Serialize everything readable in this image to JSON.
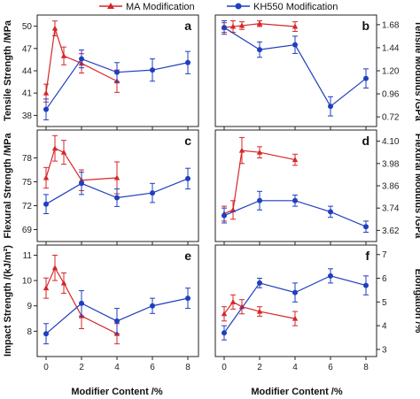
{
  "legend": {
    "ma_label": "MA Modification",
    "kh_label": "KH550 Modification"
  },
  "colors": {
    "ma": "#d62728",
    "kh": "#1f3fbf"
  },
  "shared_x": {
    "label": "Modifier Content /%",
    "ticks": [
      0,
      2,
      4,
      6,
      8
    ],
    "xlim": [
      -0.5,
      8.6
    ]
  },
  "chart_data": [
    {
      "type": "line",
      "panel": "a",
      "ylabel": "Tensile Strength /MPa",
      "yticks": [
        38,
        41,
        44,
        47,
        50
      ],
      "ylim": [
        36.5,
        51.5
      ],
      "axis_side": "left",
      "series": [
        {
          "name": "MA Modification",
          "x": [
            0,
            0.5,
            1,
            2,
            4
          ],
          "y": [
            41.0,
            49.7,
            46.0,
            45.0,
            42.6
          ],
          "err": [
            1.2,
            1.0,
            1.2,
            1.3,
            1.5
          ]
        },
        {
          "name": "KH550 Modification",
          "x": [
            0,
            2,
            4,
            6,
            8
          ],
          "y": [
            38.8,
            45.6,
            43.8,
            44.1,
            45.1
          ],
          "err": [
            1.4,
            1.2,
            1.3,
            1.5,
            1.5
          ]
        }
      ]
    },
    {
      "type": "line",
      "panel": "b",
      "ylabel": "Tensile Modulus /GPa",
      "yticks": [
        0.72,
        0.96,
        1.2,
        1.44,
        1.68
      ],
      "ytick_labels": [
        "0.72",
        "0.96",
        "1.20",
        "1.44",
        "1.68"
      ],
      "ylim": [
        0.62,
        1.78
      ],
      "axis_side": "right",
      "series": [
        {
          "name": "MA Modification",
          "x": [
            0,
            0.5,
            1,
            2,
            4
          ],
          "y": [
            1.65,
            1.66,
            1.67,
            1.69,
            1.66
          ],
          "err": [
            0.05,
            0.06,
            0.04,
            0.03,
            0.05
          ]
        },
        {
          "name": "KH550 Modification",
          "x": [
            0,
            2,
            4,
            6,
            8
          ],
          "y": [
            1.65,
            1.42,
            1.47,
            0.83,
            1.12
          ],
          "err": [
            0.07,
            0.08,
            0.09,
            0.1,
            0.1
          ]
        }
      ]
    },
    {
      "type": "line",
      "panel": "c",
      "ylabel": "Flexural Strength /MPa",
      "yticks": [
        69,
        72,
        75,
        78
      ],
      "ylim": [
        67.5,
        81.5
      ],
      "axis_side": "left",
      "series": [
        {
          "name": "MA Modification",
          "x": [
            0,
            0.5,
            1,
            2,
            4
          ],
          "y": [
            75.5,
            79.2,
            78.7,
            75.2,
            75.5
          ],
          "err": [
            1.3,
            1.6,
            1.5,
            1.3,
            2.0
          ]
        },
        {
          "name": "KH550 Modification",
          "x": [
            0,
            2,
            4,
            6,
            8
          ],
          "y": [
            72.2,
            74.8,
            73.0,
            73.6,
            75.4
          ],
          "err": [
            1.2,
            1.4,
            1.1,
            1.2,
            1.3
          ]
        }
      ]
    },
    {
      "type": "line",
      "panel": "d",
      "ylabel": "Flexural Modulus /GPa",
      "yticks": [
        3.62,
        3.74,
        3.86,
        3.98,
        4.1
      ],
      "ytick_labels": [
        "3.62",
        "3.74",
        "3.86",
        "3.98",
        "4.10"
      ],
      "ylim": [
        3.56,
        4.16
      ],
      "axis_side": "right",
      "series": [
        {
          "name": "MA Modification",
          "x": [
            0,
            0.5,
            1,
            2,
            4
          ],
          "y": [
            3.71,
            3.73,
            4.05,
            4.04,
            4.0
          ],
          "err": [
            0.04,
            0.05,
            0.07,
            0.03,
            0.03
          ]
        },
        {
          "name": "KH550 Modification",
          "x": [
            0,
            2,
            4,
            6,
            8
          ],
          "y": [
            3.7,
            3.78,
            3.78,
            3.72,
            3.64
          ],
          "err": [
            0.04,
            0.05,
            0.03,
            0.03,
            0.03
          ]
        }
      ]
    },
    {
      "type": "line",
      "panel": "e",
      "ylabel": "Impact Strength /(kJ/m²)",
      "yticks": [
        8,
        9,
        10,
        11
      ],
      "ylim": [
        7.0,
        11.4
      ],
      "axis_side": "left",
      "series": [
        {
          "name": "MA Modification",
          "x": [
            0,
            0.5,
            1,
            2,
            4
          ],
          "y": [
            9.7,
            10.5,
            9.9,
            8.6,
            7.9
          ],
          "err": [
            0.4,
            0.5,
            0.4,
            0.5,
            0.4
          ]
        },
        {
          "name": "KH550 Modification",
          "x": [
            0,
            2,
            4,
            6,
            8
          ],
          "y": [
            7.9,
            9.1,
            8.4,
            9.0,
            9.3
          ],
          "err": [
            0.4,
            0.5,
            0.5,
            0.3,
            0.4
          ]
        }
      ]
    },
    {
      "type": "line",
      "panel": "f",
      "ylabel": "Elongation /%",
      "yticks": [
        3,
        4,
        5,
        6,
        7
      ],
      "ylim": [
        2.7,
        7.4
      ],
      "axis_side": "right",
      "series": [
        {
          "name": "MA Modification",
          "x": [
            0,
            0.5,
            1,
            2,
            4
          ],
          "y": [
            4.5,
            5.0,
            4.8,
            4.6,
            4.3
          ],
          "err": [
            0.3,
            0.3,
            0.3,
            0.2,
            0.3
          ]
        },
        {
          "name": "KH550 Modification",
          "x": [
            0,
            2,
            4,
            6,
            8
          ],
          "y": [
            3.7,
            5.8,
            5.4,
            6.1,
            5.7
          ],
          "err": [
            0.3,
            0.2,
            0.4,
            0.3,
            0.4
          ]
        }
      ]
    }
  ]
}
